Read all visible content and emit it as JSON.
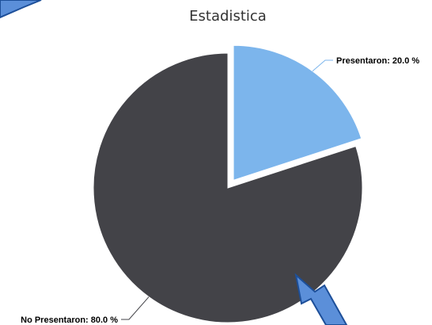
{
  "colors": {
    "background": "#ffffff",
    "arrow_fill": "#5b8fd9",
    "arrow_stroke": "#1d4f99"
  },
  "decorations": [
    "arrow-top-left",
    "arrow-bottom-right"
  ],
  "chart_data": {
    "type": "pie",
    "title": "Estadistica",
    "slices": [
      {
        "name": "Presentaron",
        "value": 20.0,
        "label": "Presentaron: 20.0 %",
        "color": "#7cb5ec",
        "exploded": true
      },
      {
        "name": "No Presentaron",
        "value": 80.0,
        "label": "No Presentaron: 80.0 %",
        "color": "#434348",
        "exploded": false
      }
    ],
    "start_angle": 0,
    "legend": "none"
  }
}
